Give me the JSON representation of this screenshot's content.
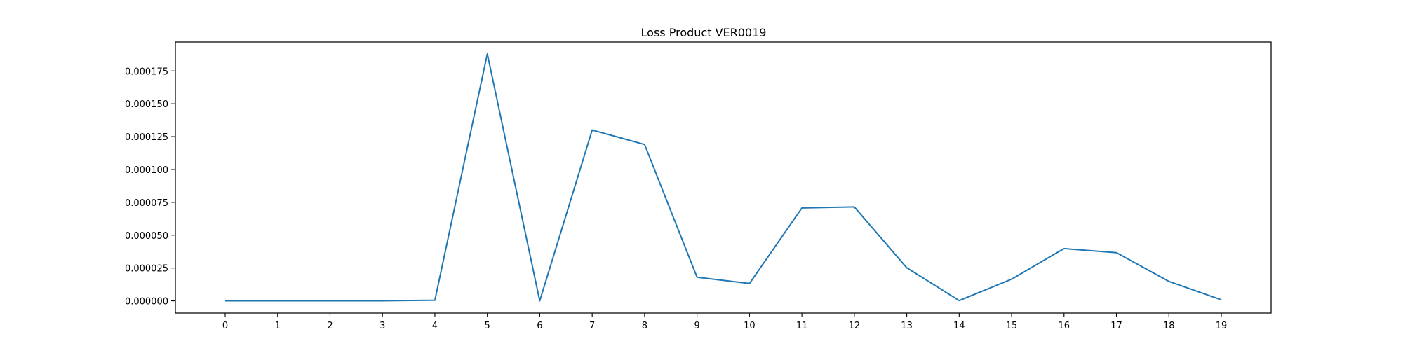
{
  "chart_data": {
    "type": "line",
    "title": "Loss Product VER0019",
    "xlabel": "",
    "ylabel": "",
    "x": [
      0,
      1,
      2,
      3,
      4,
      5,
      6,
      7,
      8,
      9,
      10,
      11,
      12,
      13,
      14,
      15,
      16,
      17,
      18,
      19
    ],
    "x_tick_labels": [
      "0",
      "1",
      "2",
      "3",
      "4",
      "5",
      "6",
      "7",
      "8",
      "9",
      "10",
      "11",
      "12",
      "13",
      "14",
      "15",
      "16",
      "17",
      "18",
      "19"
    ],
    "xlim": [
      -0.95,
      19.95
    ],
    "y_tick_values": [
      0,
      2.5e-05,
      5e-05,
      7.5e-05,
      0.0001,
      0.000125,
      0.00015,
      0.000175
    ],
    "y_tick_labels": [
      "0.000000",
      "0.000025",
      "0.000050",
      "0.000075",
      "0.000100",
      "0.000125",
      "0.000150",
      "0.000175"
    ],
    "ylim": [
      -9.3e-06,
      0.000197
    ],
    "grid": false,
    "series": [
      {
        "color": "#1f77b4",
        "values": [
          0,
          0,
          0,
          0,
          5e-07,
          0.000188,
          0,
          0.00013,
          0.000119,
          1.8e-05,
          1.32e-05,
          7.07e-05,
          7.15e-05,
          2.52e-05,
          2e-07,
          1.65e-05,
          3.98e-05,
          3.67e-05,
          1.48e-05,
          8e-07
        ]
      }
    ]
  }
}
